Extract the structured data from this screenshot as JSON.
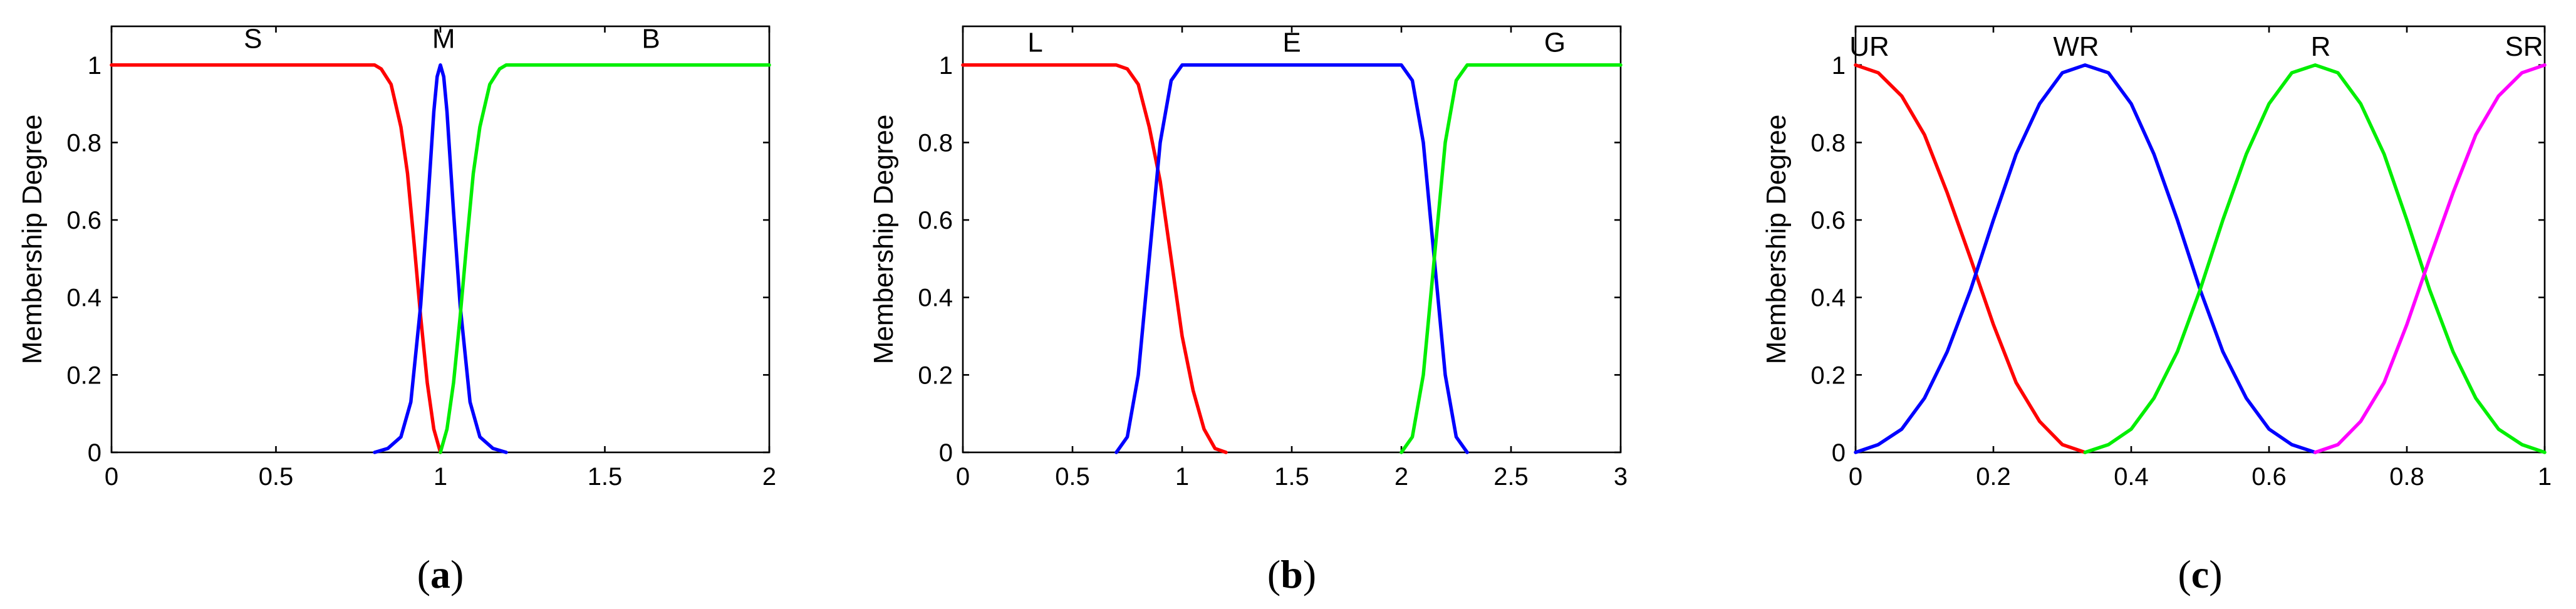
{
  "chart_data": [
    {
      "type": "line",
      "panel": "a",
      "caption": "(a)",
      "caption_letter": "a",
      "xlabel": "",
      "ylabel": "Membership Degree",
      "xlim": [
        0,
        2
      ],
      "ylim": [
        0,
        1.1
      ],
      "x_ticks": [
        0,
        0.5,
        1,
        1.5,
        2
      ],
      "x_tick_labels": [
        "0",
        "0.5",
        "1",
        "1.5",
        "2"
      ],
      "y_ticks": [
        0,
        0.2,
        0.4,
        0.6,
        0.8,
        1
      ],
      "y_tick_labels": [
        "0",
        "0.2",
        "0.4",
        "0.6",
        "0.8",
        "1"
      ],
      "grid": false,
      "series": [
        {
          "name": "S",
          "color": "#ff0000",
          "x": [
            0,
            0.8,
            0.82,
            0.85,
            0.88,
            0.9,
            0.92,
            0.94,
            0.96,
            0.98,
            1.0
          ],
          "y": [
            1,
            1,
            0.99,
            0.95,
            0.84,
            0.72,
            0.54,
            0.35,
            0.18,
            0.06,
            0
          ]
        },
        {
          "name": "M",
          "color": "#0000ff",
          "x": [
            0.8,
            0.84,
            0.88,
            0.91,
            0.94,
            0.96,
            0.98,
            0.99,
            1.0,
            1.01,
            1.02,
            1.04,
            1.06,
            1.09,
            1.12,
            1.16,
            1.2
          ],
          "y": [
            0,
            0.01,
            0.04,
            0.13,
            0.38,
            0.62,
            0.88,
            0.97,
            1,
            0.97,
            0.88,
            0.62,
            0.38,
            0.13,
            0.04,
            0.01,
            0
          ]
        },
        {
          "name": "B",
          "color": "#00ee00",
          "x": [
            1.0,
            1.02,
            1.04,
            1.06,
            1.08,
            1.1,
            1.12,
            1.15,
            1.18,
            1.2,
            2.0
          ],
          "y": [
            0,
            0.06,
            0.18,
            0.35,
            0.54,
            0.72,
            0.84,
            0.95,
            0.99,
            1,
            1
          ]
        }
      ],
      "annotations": [
        {
          "text": "S",
          "x": 0.43,
          "y": 1.07
        },
        {
          "text": "M",
          "x": 1.01,
          "y": 1.07
        },
        {
          "text": "B",
          "x": 1.64,
          "y": 1.07
        }
      ]
    },
    {
      "type": "line",
      "panel": "b",
      "caption": "(b)",
      "caption_letter": "b",
      "xlabel": "",
      "ylabel": "Membership Degree",
      "xlim": [
        0,
        3
      ],
      "ylim": [
        0,
        1.1
      ],
      "x_ticks": [
        0,
        0.5,
        1,
        1.5,
        2,
        2.5,
        3
      ],
      "x_tick_labels": [
        "0",
        "0.5",
        "1",
        "1.5",
        "2",
        "2.5",
        "3"
      ],
      "y_ticks": [
        0,
        0.2,
        0.4,
        0.6,
        0.8,
        1
      ],
      "y_tick_labels": [
        "0",
        "0.2",
        "0.4",
        "0.6",
        "0.8",
        "1"
      ],
      "grid": false,
      "series": [
        {
          "name": "L",
          "color": "#ff0000",
          "x": [
            0,
            0.7,
            0.75,
            0.8,
            0.85,
            0.9,
            0.95,
            1.0,
            1.05,
            1.1,
            1.15,
            1.2
          ],
          "y": [
            1,
            1,
            0.99,
            0.95,
            0.84,
            0.7,
            0.5,
            0.3,
            0.16,
            0.06,
            0.01,
            0
          ]
        },
        {
          "name": "E",
          "color": "#0000ff",
          "x": [
            0.7,
            0.75,
            0.8,
            0.85,
            0.9,
            0.95,
            1.0,
            2.0,
            2.05,
            2.1,
            2.15,
            2.2,
            2.25,
            2.3
          ],
          "y": [
            0,
            0.04,
            0.2,
            0.5,
            0.8,
            0.96,
            1,
            1,
            0.96,
            0.8,
            0.5,
            0.2,
            0.04,
            0
          ]
        },
        {
          "name": "G",
          "color": "#00ee00",
          "x": [
            2.0,
            2.05,
            2.1,
            2.15,
            2.2,
            2.25,
            2.3,
            3.0
          ],
          "y": [
            0,
            0.04,
            0.2,
            0.5,
            0.8,
            0.96,
            1,
            1
          ]
        }
      ],
      "annotations": [
        {
          "text": "L",
          "x": 0.33,
          "y": 1.06
        },
        {
          "text": "E",
          "x": 1.5,
          "y": 1.06
        },
        {
          "text": "G",
          "x": 2.7,
          "y": 1.06
        }
      ]
    },
    {
      "type": "line",
      "panel": "c",
      "caption": "(c)",
      "caption_letter": "c",
      "xlabel": "",
      "ylabel": "Membership Degree",
      "xlim": [
        0,
        1
      ],
      "ylim": [
        0,
        1.1
      ],
      "x_ticks": [
        0,
        0.2,
        0.4,
        0.6,
        0.8,
        1
      ],
      "x_tick_labels": [
        "0",
        "0.2",
        "0.4",
        "0.6",
        "0.8",
        "1"
      ],
      "y_ticks": [
        0,
        0.2,
        0.4,
        0.6,
        0.8,
        1
      ],
      "y_tick_labels": [
        "0",
        "0.2",
        "0.4",
        "0.6",
        "0.8",
        "1"
      ],
      "grid": false,
      "series": [
        {
          "name": "UR",
          "color": "#ff0000",
          "x": [
            0,
            0.033,
            0.067,
            0.1,
            0.133,
            0.167,
            0.2,
            0.233,
            0.267,
            0.3,
            0.333
          ],
          "y": [
            1,
            0.98,
            0.92,
            0.82,
            0.67,
            0.5,
            0.33,
            0.18,
            0.08,
            0.02,
            0
          ]
        },
        {
          "name": "WR",
          "color": "#0000ff",
          "x": [
            0,
            0.033,
            0.067,
            0.1,
            0.133,
            0.167,
            0.2,
            0.233,
            0.267,
            0.3,
            0.333,
            0.367,
            0.4,
            0.433,
            0.467,
            0.5,
            0.533,
            0.567,
            0.6,
            0.633,
            0.667
          ],
          "y": [
            0,
            0.02,
            0.06,
            0.14,
            0.26,
            0.42,
            0.6,
            0.77,
            0.9,
            0.98,
            1,
            0.98,
            0.9,
            0.77,
            0.6,
            0.42,
            0.26,
            0.14,
            0.06,
            0.02,
            0
          ]
        },
        {
          "name": "R",
          "color": "#00ee00",
          "x": [
            0.333,
            0.367,
            0.4,
            0.433,
            0.467,
            0.5,
            0.533,
            0.567,
            0.6,
            0.633,
            0.667,
            0.7,
            0.733,
            0.767,
            0.8,
            0.833,
            0.867,
            0.9,
            0.933,
            0.967,
            1.0
          ],
          "y": [
            0,
            0.02,
            0.06,
            0.14,
            0.26,
            0.42,
            0.6,
            0.77,
            0.9,
            0.98,
            1,
            0.98,
            0.9,
            0.77,
            0.6,
            0.42,
            0.26,
            0.14,
            0.06,
            0.02,
            0
          ]
        },
        {
          "name": "SR",
          "color": "#ff00ff",
          "x": [
            0.667,
            0.7,
            0.733,
            0.767,
            0.8,
            0.833,
            0.867,
            0.9,
            0.933,
            0.967,
            1.0
          ],
          "y": [
            0,
            0.02,
            0.08,
            0.18,
            0.33,
            0.5,
            0.67,
            0.82,
            0.92,
            0.98,
            1
          ]
        }
      ],
      "annotations": [
        {
          "text": "UR",
          "x": 0.02,
          "y": 1.05
        },
        {
          "text": "WR",
          "x": 0.32,
          "y": 1.05
        },
        {
          "text": "R",
          "x": 0.675,
          "y": 1.05
        },
        {
          "text": "SR",
          "x": 0.97,
          "y": 1.05
        }
      ]
    }
  ]
}
